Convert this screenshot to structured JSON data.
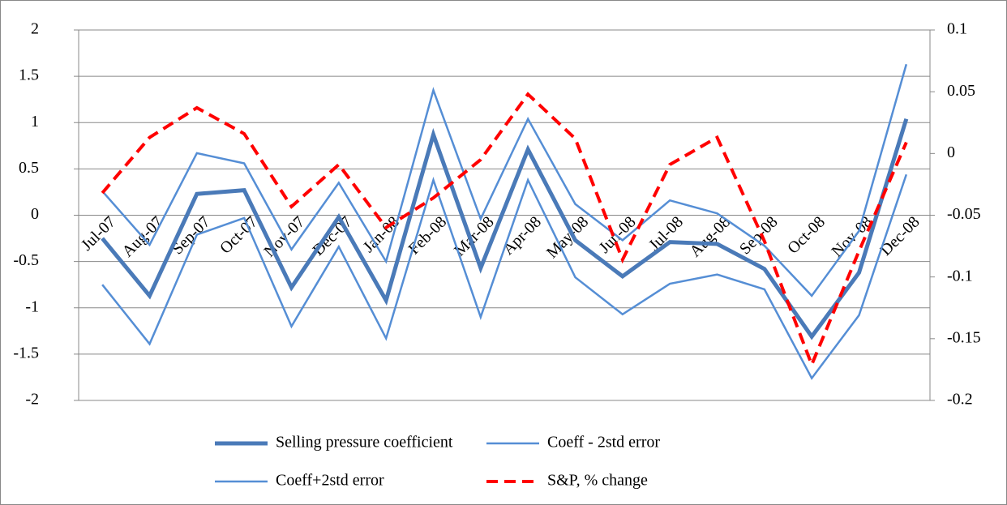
{
  "chart_data": {
    "type": "line",
    "categories": [
      "Jul-07",
      "Aug-07",
      "Sep-07",
      "Oct-07",
      "Nov-07",
      "Dec-07",
      "Jan-08",
      "Feb-08",
      "Mar-08",
      "Apr-08",
      "May-08",
      "Jun-08",
      "Jul-08",
      "Aug-08",
      "Sep-08",
      "Oct-08",
      "Nov-08",
      "Dec-08"
    ],
    "series": [
      {
        "name": "Selling pressure coefficient",
        "color": "#4a7ab8",
        "line_width": 5,
        "dashed": false,
        "values": [
          -0.25,
          -0.87,
          0.23,
          0.27,
          -0.78,
          -0.02,
          -0.92,
          0.87,
          -0.57,
          0.71,
          -0.27,
          -0.66,
          -0.29,
          -0.31,
          -0.58,
          -1.31,
          -0.62,
          1.04
        ]
      },
      {
        "name": "Coeff - 2std error",
        "color": "#558ed5",
        "line_width": 2.5,
        "dashed": false,
        "values": [
          -0.75,
          -1.39,
          -0.21,
          -0.03,
          -1.2,
          -0.34,
          -1.33,
          0.38,
          -1.1,
          0.38,
          -0.67,
          -1.07,
          -0.74,
          -0.64,
          -0.8,
          -1.76,
          -1.08,
          0.44
        ]
      },
      {
        "name": "Coeff+2std error",
        "color": "#558ed5",
        "line_width": 2.5,
        "dashed": false,
        "values": [
          0.26,
          -0.32,
          0.67,
          0.56,
          -0.37,
          0.35,
          -0.5,
          1.35,
          -0.04,
          1.04,
          0.12,
          -0.27,
          0.16,
          0.02,
          -0.33,
          -0.87,
          -0.17,
          1.63
        ]
      },
      {
        "name": "S&P, % change",
        "color": "#ff0000",
        "line_width": 4,
        "dashed": true,
        "axis": "y2",
        "values": [
          -0.032,
          0.013,
          0.037,
          0.016,
          -0.043,
          -0.009,
          -0.06,
          -0.036,
          -0.005,
          0.048,
          0.012,
          -0.086,
          -0.009,
          0.013,
          -0.071,
          -0.171,
          -0.079,
          0.009
        ]
      }
    ],
    "ylim": [
      -2,
      2
    ],
    "yticks": [
      2,
      1.5,
      1,
      0.5,
      0,
      -0.5,
      -1,
      -1.5,
      -2
    ],
    "y2lim": [
      -0.2,
      0.1
    ],
    "y2ticks": [
      0.1,
      0.05,
      0,
      -0.05,
      -0.1,
      -0.15,
      -0.2
    ],
    "grid": true
  }
}
